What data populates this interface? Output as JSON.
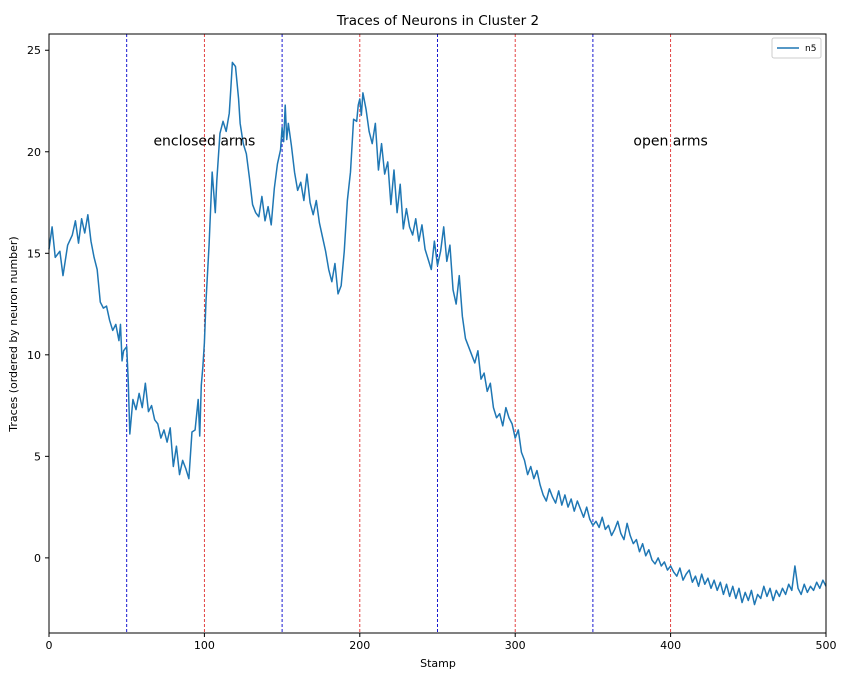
{
  "chart_data": {
    "type": "line",
    "title": "Traces of Neurons in Cluster 2",
    "xlabel": "Stamp",
    "ylabel": "Traces (ordered by neuron number)",
    "xlim": [
      0,
      500
    ],
    "ylim": [
      -3.7,
      25.8
    ],
    "xticks": [
      0,
      100,
      200,
      300,
      400,
      500
    ],
    "yticks": [
      0,
      5,
      10,
      15,
      20,
      25
    ],
    "grid": false,
    "legend": {
      "position": "top-right"
    },
    "series": [
      {
        "name": "n5",
        "color": "#1f77b4",
        "points": [
          [
            0,
            15.2
          ],
          [
            2,
            16.3
          ],
          [
            4,
            14.8
          ],
          [
            7,
            15.1
          ],
          [
            9,
            13.9
          ],
          [
            12,
            15.4
          ],
          [
            15,
            15.9
          ],
          [
            17,
            16.6
          ],
          [
            19,
            15.5
          ],
          [
            21,
            16.7
          ],
          [
            23,
            16.0
          ],
          [
            25,
            16.9
          ],
          [
            27,
            15.6
          ],
          [
            29,
            14.8
          ],
          [
            31,
            14.2
          ],
          [
            33,
            12.6
          ],
          [
            35,
            12.3
          ],
          [
            37,
            12.4
          ],
          [
            39,
            11.7
          ],
          [
            41,
            11.2
          ],
          [
            43,
            11.5
          ],
          [
            45,
            10.7
          ],
          [
            46,
            11.5
          ],
          [
            47,
            9.7
          ],
          [
            48,
            10.2
          ],
          [
            50,
            10.4
          ],
          [
            51,
            8.7
          ],
          [
            52,
            6.1
          ],
          [
            54,
            7.8
          ],
          [
            56,
            7.3
          ],
          [
            58,
            8.1
          ],
          [
            60,
            7.4
          ],
          [
            62,
            8.6
          ],
          [
            64,
            7.2
          ],
          [
            66,
            7.5
          ],
          [
            68,
            6.8
          ],
          [
            70,
            6.6
          ],
          [
            72,
            5.9
          ],
          [
            74,
            6.3
          ],
          [
            76,
            5.7
          ],
          [
            78,
            6.4
          ],
          [
            80,
            4.5
          ],
          [
            82,
            5.5
          ],
          [
            84,
            4.1
          ],
          [
            86,
            4.8
          ],
          [
            88,
            4.4
          ],
          [
            90,
            3.9
          ],
          [
            92,
            6.2
          ],
          [
            94,
            6.3
          ],
          [
            96,
            7.8
          ],
          [
            97,
            6.0
          ],
          [
            98,
            8.5
          ],
          [
            99,
            9.4
          ],
          [
            100,
            10.6
          ],
          [
            101,
            12.6
          ],
          [
            103,
            15.4
          ],
          [
            105,
            19.0
          ],
          [
            107,
            17.0
          ],
          [
            108,
            18.6
          ],
          [
            110,
            20.9
          ],
          [
            112,
            21.5
          ],
          [
            114,
            21.0
          ],
          [
            116,
            21.9
          ],
          [
            117,
            23.1
          ],
          [
            118,
            24.4
          ],
          [
            120,
            24.2
          ],
          [
            122,
            22.6
          ],
          [
            123,
            21.4
          ],
          [
            125,
            20.4
          ],
          [
            127,
            19.9
          ],
          [
            129,
            18.7
          ],
          [
            131,
            17.4
          ],
          [
            133,
            17.0
          ],
          [
            135,
            16.8
          ],
          [
            137,
            17.8
          ],
          [
            139,
            16.6
          ],
          [
            141,
            17.3
          ],
          [
            143,
            16.4
          ],
          [
            145,
            18.2
          ],
          [
            147,
            19.4
          ],
          [
            149,
            20.1
          ],
          [
            150,
            21.2
          ],
          [
            151,
            20.5
          ],
          [
            152,
            22.3
          ],
          [
            153,
            20.6
          ],
          [
            154,
            21.4
          ],
          [
            156,
            20.3
          ],
          [
            158,
            19.0
          ],
          [
            160,
            18.1
          ],
          [
            162,
            18.5
          ],
          [
            164,
            17.6
          ],
          [
            166,
            18.9
          ],
          [
            168,
            17.5
          ],
          [
            170,
            16.9
          ],
          [
            172,
            17.6
          ],
          [
            174,
            16.5
          ],
          [
            176,
            15.8
          ],
          [
            178,
            15.1
          ],
          [
            180,
            14.2
          ],
          [
            182,
            13.6
          ],
          [
            184,
            14.5
          ],
          [
            186,
            13.0
          ],
          [
            188,
            13.4
          ],
          [
            190,
            15.1
          ],
          [
            192,
            17.6
          ],
          [
            194,
            19.0
          ],
          [
            196,
            21.6
          ],
          [
            198,
            21.5
          ],
          [
            199,
            22.3
          ],
          [
            200,
            22.6
          ],
          [
            201,
            21.8
          ],
          [
            202,
            22.9
          ],
          [
            204,
            22.1
          ],
          [
            206,
            21.0
          ],
          [
            208,
            20.4
          ],
          [
            210,
            21.4
          ],
          [
            212,
            19.1
          ],
          [
            214,
            20.4
          ],
          [
            216,
            18.9
          ],
          [
            218,
            19.5
          ],
          [
            220,
            17.4
          ],
          [
            222,
            19.1
          ],
          [
            224,
            17.0
          ],
          [
            226,
            18.4
          ],
          [
            228,
            16.2
          ],
          [
            230,
            17.2
          ],
          [
            232,
            16.3
          ],
          [
            234,
            15.9
          ],
          [
            236,
            16.7
          ],
          [
            238,
            15.6
          ],
          [
            240,
            16.4
          ],
          [
            242,
            15.2
          ],
          [
            244,
            14.7
          ],
          [
            246,
            14.2
          ],
          [
            248,
            15.6
          ],
          [
            250,
            14.4
          ],
          [
            252,
            15.1
          ],
          [
            254,
            16.3
          ],
          [
            256,
            14.6
          ],
          [
            258,
            15.4
          ],
          [
            260,
            13.2
          ],
          [
            262,
            12.5
          ],
          [
            264,
            13.9
          ],
          [
            266,
            11.9
          ],
          [
            268,
            10.8
          ],
          [
            270,
            10.4
          ],
          [
            272,
            10.0
          ],
          [
            274,
            9.6
          ],
          [
            276,
            10.2
          ],
          [
            278,
            8.8
          ],
          [
            280,
            9.1
          ],
          [
            282,
            8.2
          ],
          [
            284,
            8.6
          ],
          [
            286,
            7.4
          ],
          [
            288,
            6.9
          ],
          [
            290,
            7.1
          ],
          [
            292,
            6.5
          ],
          [
            294,
            7.4
          ],
          [
            296,
            6.9
          ],
          [
            298,
            6.6
          ],
          [
            300,
            5.9
          ],
          [
            302,
            6.3
          ],
          [
            304,
            5.2
          ],
          [
            306,
            4.8
          ],
          [
            308,
            4.1
          ],
          [
            310,
            4.5
          ],
          [
            312,
            3.9
          ],
          [
            314,
            4.3
          ],
          [
            316,
            3.6
          ],
          [
            318,
            3.1
          ],
          [
            320,
            2.8
          ],
          [
            322,
            3.4
          ],
          [
            324,
            3.0
          ],
          [
            326,
            2.7
          ],
          [
            328,
            3.3
          ],
          [
            330,
            2.6
          ],
          [
            332,
            3.1
          ],
          [
            334,
            2.5
          ],
          [
            336,
            2.9
          ],
          [
            338,
            2.3
          ],
          [
            340,
            2.8
          ],
          [
            342,
            2.4
          ],
          [
            344,
            2.0
          ],
          [
            346,
            2.5
          ],
          [
            348,
            1.9
          ],
          [
            350,
            1.6
          ],
          [
            352,
            1.8
          ],
          [
            354,
            1.5
          ],
          [
            356,
            2.0
          ],
          [
            358,
            1.4
          ],
          [
            360,
            1.6
          ],
          [
            362,
            1.1
          ],
          [
            364,
            1.4
          ],
          [
            366,
            1.8
          ],
          [
            368,
            1.2
          ],
          [
            370,
            0.9
          ],
          [
            372,
            1.7
          ],
          [
            374,
            1.1
          ],
          [
            376,
            0.7
          ],
          [
            378,
            0.9
          ],
          [
            380,
            0.3
          ],
          [
            382,
            0.7
          ],
          [
            384,
            0.1
          ],
          [
            386,
            0.4
          ],
          [
            388,
            -0.1
          ],
          [
            390,
            -0.3
          ],
          [
            392,
            0.0
          ],
          [
            394,
            -0.4
          ],
          [
            396,
            -0.2
          ],
          [
            398,
            -0.6
          ],
          [
            400,
            -0.4
          ],
          [
            402,
            -0.7
          ],
          [
            404,
            -0.9
          ],
          [
            406,
            -0.5
          ],
          [
            408,
            -1.1
          ],
          [
            410,
            -0.8
          ],
          [
            412,
            -0.6
          ],
          [
            414,
            -1.2
          ],
          [
            416,
            -0.9
          ],
          [
            418,
            -1.4
          ],
          [
            420,
            -0.8
          ],
          [
            422,
            -1.3
          ],
          [
            424,
            -1.0
          ],
          [
            426,
            -1.5
          ],
          [
            428,
            -1.1
          ],
          [
            430,
            -1.6
          ],
          [
            432,
            -1.2
          ],
          [
            434,
            -1.8
          ],
          [
            436,
            -1.3
          ],
          [
            438,
            -1.9
          ],
          [
            440,
            -1.4
          ],
          [
            442,
            -2.0
          ],
          [
            444,
            -1.5
          ],
          [
            446,
            -2.2
          ],
          [
            448,
            -1.7
          ],
          [
            450,
            -2.1
          ],
          [
            452,
            -1.6
          ],
          [
            454,
            -2.3
          ],
          [
            456,
            -1.8
          ],
          [
            458,
            -2.0
          ],
          [
            460,
            -1.4
          ],
          [
            462,
            -1.9
          ],
          [
            464,
            -1.5
          ],
          [
            466,
            -2.1
          ],
          [
            468,
            -1.6
          ],
          [
            470,
            -1.9
          ],
          [
            472,
            -1.5
          ],
          [
            474,
            -1.8
          ],
          [
            476,
            -1.3
          ],
          [
            478,
            -1.6
          ],
          [
            480,
            -0.4
          ],
          [
            482,
            -1.5
          ],
          [
            484,
            -1.8
          ],
          [
            486,
            -1.3
          ],
          [
            488,
            -1.7
          ],
          [
            490,
            -1.4
          ],
          [
            492,
            -1.6
          ],
          [
            494,
            -1.2
          ],
          [
            496,
            -1.5
          ],
          [
            498,
            -1.1
          ],
          [
            500,
            -1.4
          ]
        ]
      }
    ],
    "vlines": [
      {
        "x": 50,
        "color": "#0000cc"
      },
      {
        "x": 100,
        "color": "#e03030"
      },
      {
        "x": 150,
        "color": "#0000cc"
      },
      {
        "x": 200,
        "color": "#e03030"
      },
      {
        "x": 250,
        "color": "#0000cc"
      },
      {
        "x": 300,
        "color": "#e03030"
      },
      {
        "x": 350,
        "color": "#0000cc"
      },
      {
        "x": 400,
        "color": "#e03030"
      }
    ],
    "annotations": [
      {
        "text": "enclosed arms",
        "x": 100,
        "y": 20.3
      },
      {
        "text": "open arms",
        "x": 400,
        "y": 20.3
      }
    ]
  }
}
